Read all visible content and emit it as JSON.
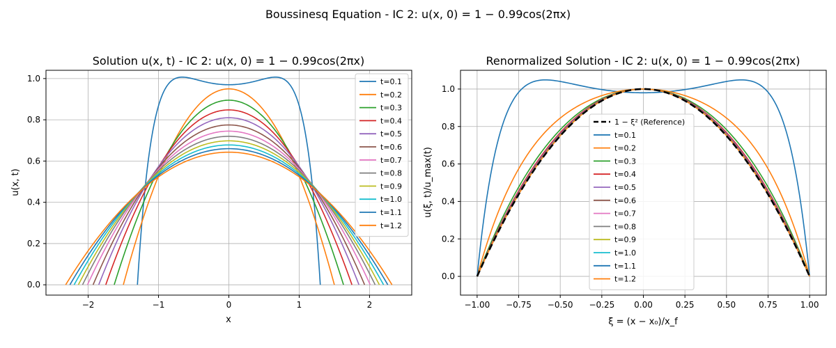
{
  "suptitle": "Boussinesq Equation - IC 2: u(x, 0) = 1 − 0.99cos(2πx)",
  "colors": [
    "#1f77b4",
    "#ff7f0e",
    "#2ca02c",
    "#d62728",
    "#9467bd",
    "#8c564b",
    "#e377c2",
    "#7f7f7f",
    "#bcbd22",
    "#17becf",
    "#1f77b4",
    "#ff7f0e"
  ],
  "chart_data": [
    {
      "type": "line",
      "title": "Solution u(x, t) - IC 2: u(x, 0) = 1 − 0.99cos(2πx)",
      "xlabel": "x",
      "ylabel": "u(x, t)",
      "xlim": [
        -2.6,
        2.6
      ],
      "ylim": [
        -0.05,
        1.04
      ],
      "xticks": [
        -2,
        -1,
        0,
        1,
        2
      ],
      "xtick_labels": [
        "−2",
        "−1",
        "0",
        "1",
        "2"
      ],
      "yticks": [
        0.0,
        0.2,
        0.4,
        0.6,
        0.8,
        1.0
      ],
      "ytick_labels": [
        "0.0",
        "0.2",
        "0.4",
        "0.6",
        "0.8",
        "1.0"
      ],
      "grid": true,
      "legend": "upper right",
      "series": [
        {
          "name": "t=0.1",
          "peak": 0.97,
          "xf": 1.3,
          "shoulder": 0.99,
          "shoulder_x": 0.4
        },
        {
          "name": "t=0.2",
          "peak": 0.95,
          "xf": 1.5
        },
        {
          "name": "t=0.3",
          "peak": 0.895,
          "xf": 1.63
        },
        {
          "name": "t=0.4",
          "peak": 0.848,
          "xf": 1.75
        },
        {
          "name": "t=0.5",
          "peak": 0.81,
          "xf": 1.85
        },
        {
          "name": "t=0.6",
          "peak": 0.775,
          "xf": 1.93
        },
        {
          "name": "t=0.7",
          "peak": 0.745,
          "xf": 2.01
        },
        {
          "name": "t=0.8",
          "peak": 0.72,
          "xf": 2.08
        },
        {
          "name": "t=0.9",
          "peak": 0.698,
          "xf": 2.14
        },
        {
          "name": "t=1.0",
          "peak": 0.678,
          "xf": 2.2
        },
        {
          "name": "t=1.1",
          "peak": 0.66,
          "xf": 2.26
        },
        {
          "name": "t=1.2",
          "peak": 0.643,
          "xf": 2.32
        }
      ]
    },
    {
      "type": "line",
      "title": "Renormalized Solution - IC 2: u(x, 0) = 1 − 0.99cos(2πx)",
      "xlabel": "ξ = (x − x₀)/x_f",
      "ylabel": "u(ξ, t)/u_max(t)",
      "xlim": [
        -1.1,
        1.1
      ],
      "ylim": [
        -0.1,
        1.1
      ],
      "xticks": [
        -1.0,
        -0.75,
        -0.5,
        -0.25,
        0.0,
        0.25,
        0.5,
        0.75,
        1.0
      ],
      "xtick_labels": [
        "−1.00",
        "−0.75",
        "−0.50",
        "−0.25",
        "0.00",
        "0.25",
        "0.50",
        "0.75",
        "1.00"
      ],
      "yticks": [
        0.0,
        0.2,
        0.4,
        0.6,
        0.8,
        1.0
      ],
      "ytick_labels": [
        "0.0",
        "0.2",
        "0.4",
        "0.6",
        "0.8",
        "1.0"
      ],
      "grid": true,
      "legend": "center",
      "reference": {
        "name": "1 − ξ² (Reference)",
        "color": "#000000",
        "style": "dashed"
      },
      "series": [
        {
          "name": "t=0.1",
          "shape": "double-hump",
          "shoulder_x": 0.27,
          "center": 0.98
        },
        {
          "name": "t=0.2",
          "flatness": 0.45
        },
        {
          "name": "t=0.3",
          "flatness": 0.22
        },
        {
          "name": "t=0.4",
          "flatness": 0.15
        },
        {
          "name": "t=0.5",
          "flatness": 0.12
        },
        {
          "name": "t=0.6",
          "flatness": 0.1
        },
        {
          "name": "t=0.7",
          "flatness": 0.08
        },
        {
          "name": "t=0.8",
          "flatness": 0.07
        },
        {
          "name": "t=0.9",
          "flatness": 0.06
        },
        {
          "name": "t=1.0",
          "flatness": 0.05
        },
        {
          "name": "t=1.1",
          "flatness": 0.04
        },
        {
          "name": "t=1.2",
          "flatness": 0.035
        }
      ]
    }
  ]
}
